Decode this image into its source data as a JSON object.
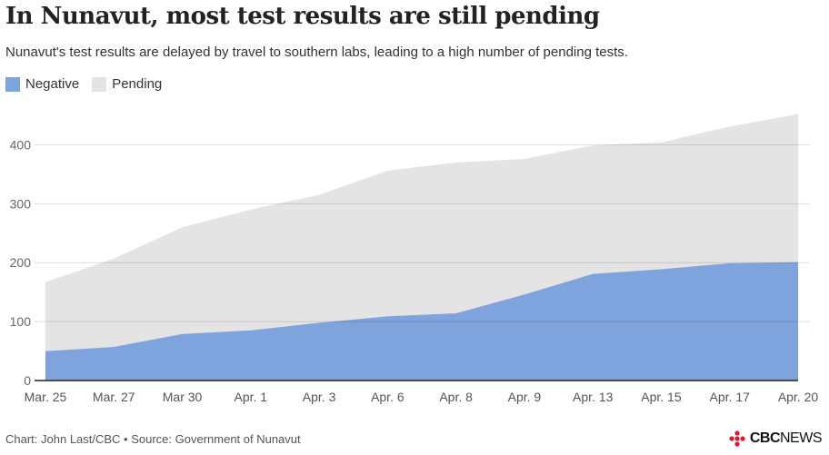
{
  "chart_data": {
    "type": "area",
    "title": "In Nunavut, most test results are still pending",
    "subtitle": "Nunavut's test results are delayed by travel to southern labs, leading to a high number of pending tests.",
    "categories": [
      "Mar. 25",
      "Mar. 27",
      "Mar 30",
      "Apr. 1",
      "Apr. 3",
      "Apr. 6",
      "Apr. 8",
      "Apr. 9",
      "Apr. 13",
      "Apr. 15",
      "Apr. 17",
      "Apr. 20"
    ],
    "series": [
      {
        "name": "Negative",
        "color": "#7fa3dd",
        "values": [
          50,
          57,
          79,
          85,
          98,
          109,
          114,
          146,
          181,
          189,
          199,
          201
        ]
      },
      {
        "name": "Pending",
        "color": "#e4e4e4",
        "values": [
          117,
          150,
          181,
          205,
          217,
          247,
          256,
          230,
          218,
          215,
          232,
          251
        ]
      }
    ],
    "stacked": true,
    "ylim": [
      0,
      450
    ],
    "yticks": [
      0,
      100,
      200,
      300,
      400
    ],
    "grid": true,
    "legend_position": "top-left"
  },
  "footer": {
    "credit": "Chart: John Last/CBC • Source: Government of Nunavut"
  },
  "logo": {
    "brand": "CBC",
    "suffix": "NEWS"
  }
}
